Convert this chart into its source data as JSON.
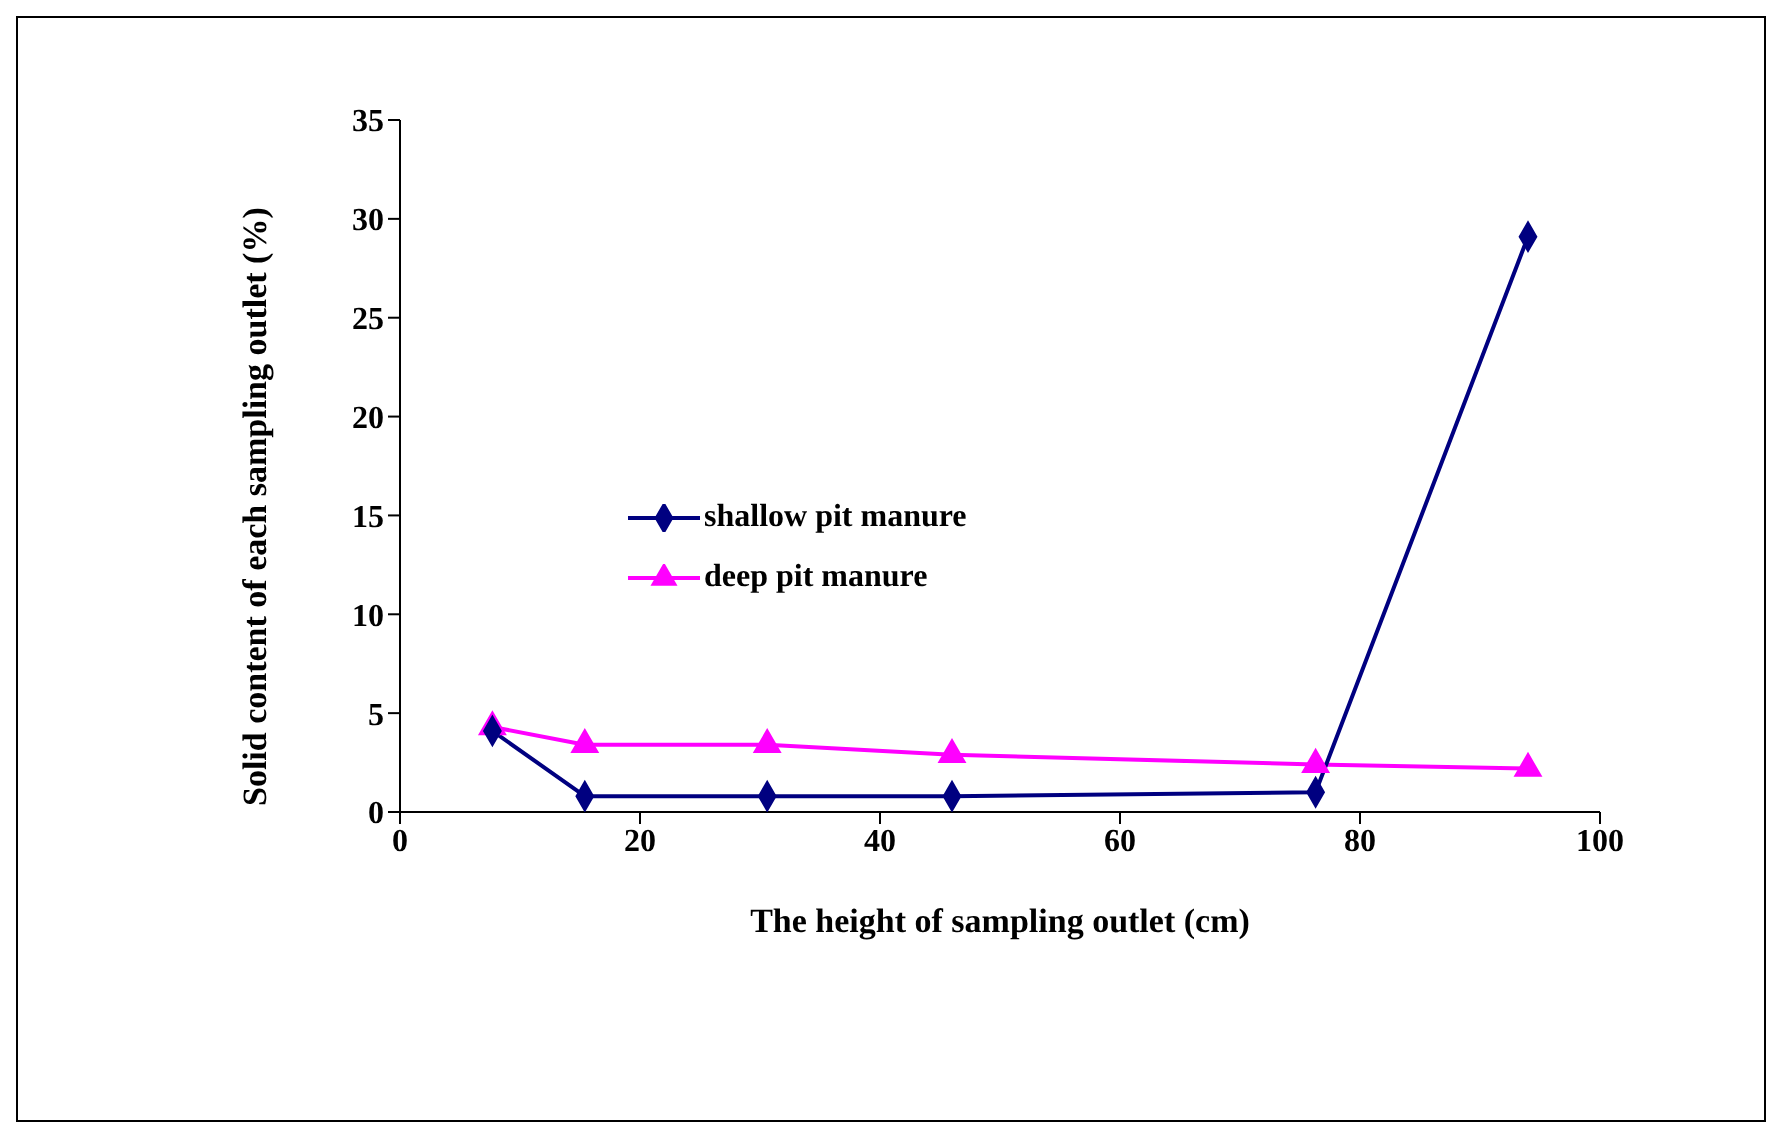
{
  "chart_data": {
    "type": "line",
    "xlabel": "The height of sampling outlet (cm)",
    "ylabel": "Solid content of each sampling outlet (%)",
    "xlim": [
      0,
      100
    ],
    "xticks": [
      0,
      20,
      40,
      60,
      80,
      100
    ],
    "ylim": [
      0,
      35
    ],
    "yticks": [
      0,
      5,
      10,
      15,
      20,
      25,
      30,
      35
    ],
    "grid": false,
    "legend": "left",
    "series": [
      {
        "name": "shallow pit manure",
        "color": "#000080",
        "marker": "diamond",
        "x": [
          7.7,
          15.4,
          30.6,
          46,
          76.3,
          94
        ],
        "values": [
          4.1,
          0.8,
          0.8,
          0.8,
          1.0,
          29.1
        ]
      },
      {
        "name": "deep pit manure",
        "color": "#ff00ff",
        "marker": "triangle",
        "x": [
          7.7,
          15.4,
          30.6,
          46,
          76.3,
          94
        ],
        "values": [
          4.3,
          3.4,
          3.4,
          2.9,
          2.4,
          2.2
        ]
      }
    ]
  }
}
